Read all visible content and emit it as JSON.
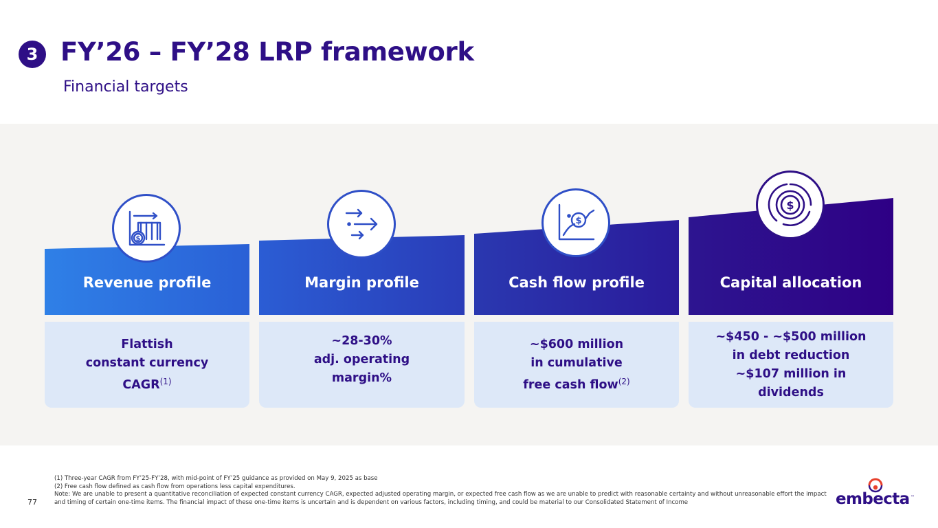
{
  "header": {
    "section_number": "3",
    "title": "FY’26 – FY’28 LRP framework",
    "subtitle": "Financial targets"
  },
  "cards": [
    {
      "title": "Revenue profile",
      "icon": "revenue-chart-dollar-icon",
      "body_lines": [
        "Flattish",
        "constant currency",
        "CAGR"
      ],
      "body_footnote_ref": "(1)"
    },
    {
      "title": "Margin profile",
      "icon": "arrows-icon",
      "body_lines": [
        "~28-30%",
        "adj. operating",
        "margin%"
      ]
    },
    {
      "title": "Cash flow profile",
      "icon": "cash-flow-chart-icon",
      "body_lines": [
        "~$600 million",
        "in cumulative",
        "free cash flow"
      ],
      "body_footnote_ref": "(2)"
    },
    {
      "title": "Capital allocation",
      "icon": "capital-allocation-dollar-icon",
      "body_lines": [
        "~$450 - ~$500 million",
        "in debt reduction",
        "~$107 million in",
        "dividends"
      ]
    }
  ],
  "colors": {
    "brand_purple": "#2e0f86",
    "card_blue_start": "#2f7fe6",
    "card_purple_end": "#2e0085",
    "body_fill": "#dde8f8",
    "band_bg": "#f5f4f2"
  },
  "footnotes": [
    "(1) Three-year CAGR from FY’25-FY’28, with mid-point of FY’25 guidance as provided on May 9, 2025 as base",
    "(2) Free cash flow defined as cash flow from operations less capital expenditures.",
    "Note: We are unable to present a quantitative reconciliation of expected constant currency CAGR, expected adjusted operating margin, or expected free cash flow as we are unable to predict with reasonable certainty and without unreasonable effort the impact and timing of certain one-time items. The financial impact of these one-time items is uncertain and is dependent on various factors, including timing, and could be material to our Consolidated Statement of Income"
  ],
  "page_number": "77",
  "logo": {
    "text": "embecta",
    "tm": "™"
  }
}
